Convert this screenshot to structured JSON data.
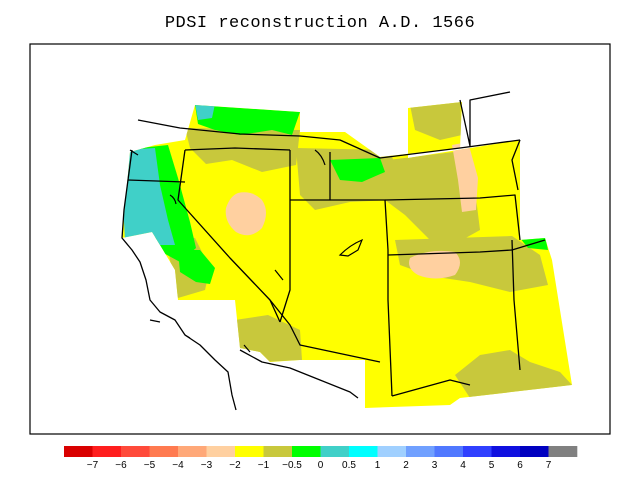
{
  "title": "PDSI reconstruction A.D. 1566",
  "colorbar": {
    "colors": [
      "#d90000",
      "#ff1e1e",
      "#ff4a3a",
      "#ff7a50",
      "#ffa878",
      "#ffd0a0",
      "#ffff00",
      "#c8c83c",
      "#00ff00",
      "#40d0c8",
      "#00ffff",
      "#a0d0ff",
      "#70a0ff",
      "#5078ff",
      "#3040ff",
      "#1010e0",
      "#0000c0",
      "#808080"
    ],
    "labels": [
      "−7",
      "−6",
      "−5",
      "−4",
      "−3",
      "−2",
      "−1",
      "−0.5",
      "0",
      "0.5",
      "1",
      "2",
      "3",
      "4",
      "5",
      "6",
      "7"
    ]
  },
  "legend_colors": {
    "very_dry": "#ffd0a0",
    "dry": "#ffff00",
    "moderate": "#c8c83c",
    "normal": "#00ff00",
    "wet": "#40d0c8"
  }
}
